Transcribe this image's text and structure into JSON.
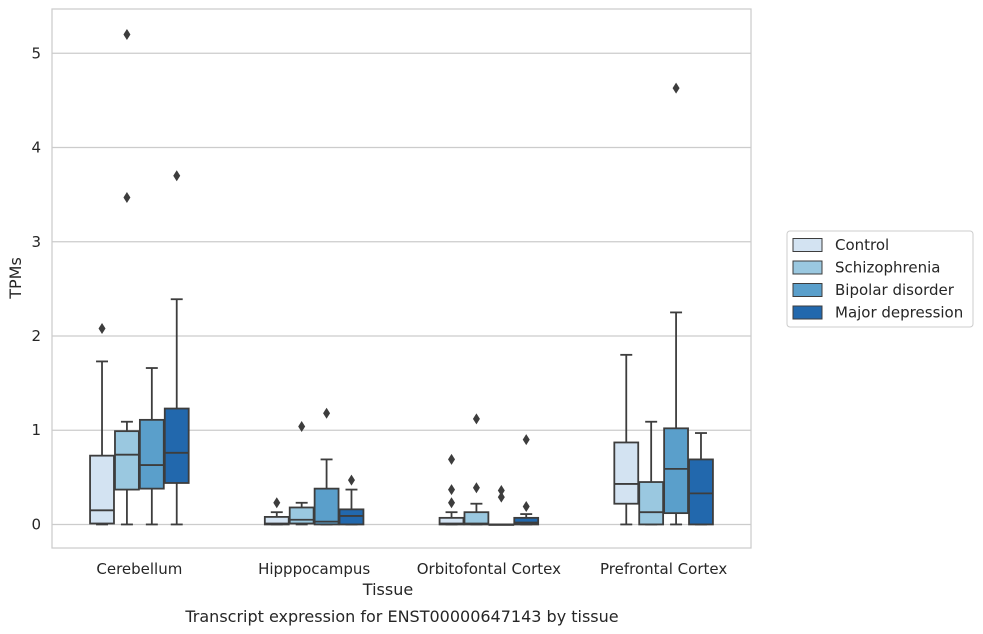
{
  "caption": "Transcript expression for ENST00000647143 by tissue",
  "chart_data": {
    "type": "box",
    "xlabel": "Tissue",
    "ylabel": "TPMs",
    "ylim": [
      -0.25,
      5.47
    ],
    "yticks": [
      0,
      1,
      2,
      3,
      4,
      5
    ],
    "grid": "horizontal",
    "legend_position": "right",
    "categories": [
      "Cerebellum",
      "Hipppocampus",
      "Orbitofontal Cortex",
      "Prefrontal Cortex"
    ],
    "series": [
      {
        "name": "Control",
        "color": "#d3e3f2",
        "boxes": [
          {
            "whislo": 0.0,
            "q1": 0.01,
            "med": 0.15,
            "q3": 0.73,
            "whishi": 1.73,
            "fliers": [
              2.08
            ]
          },
          {
            "whislo": 0.0,
            "q1": 0.0,
            "med": 0.01,
            "q3": 0.08,
            "whishi": 0.13,
            "fliers": [
              0.23
            ]
          },
          {
            "whislo": 0.0,
            "q1": 0.0,
            "med": 0.01,
            "q3": 0.07,
            "whishi": 0.13,
            "fliers": [
              0.23,
              0.37,
              0.69
            ]
          },
          {
            "whislo": 0.0,
            "q1": 0.22,
            "med": 0.43,
            "q3": 0.87,
            "whishi": 1.8,
            "fliers": []
          }
        ]
      },
      {
        "name": "Schizophrenia",
        "color": "#9ac8e0",
        "boxes": [
          {
            "whislo": 0.0,
            "q1": 0.37,
            "med": 0.74,
            "q3": 0.99,
            "whishi": 1.09,
            "fliers": [
              3.47,
              5.2
            ]
          },
          {
            "whislo": 0.0,
            "q1": 0.01,
            "med": 0.05,
            "q3": 0.18,
            "whishi": 0.23,
            "fliers": [
              1.04
            ]
          },
          {
            "whislo": 0.0,
            "q1": 0.0,
            "med": 0.01,
            "q3": 0.13,
            "whishi": 0.22,
            "fliers": [
              0.39,
              1.12
            ]
          },
          {
            "whislo": 0.0,
            "q1": 0.0,
            "med": 0.13,
            "q3": 0.45,
            "whishi": 1.09,
            "fliers": []
          }
        ]
      },
      {
        "name": "Bipolar disorder",
        "color": "#5a9fcb",
        "boxes": [
          {
            "whislo": 0.0,
            "q1": 0.38,
            "med": 0.63,
            "q3": 1.11,
            "whishi": 1.66,
            "fliers": []
          },
          {
            "whislo": 0.0,
            "q1": 0.0,
            "med": 0.03,
            "q3": 0.38,
            "whishi": 0.69,
            "fliers": [
              1.18
            ]
          },
          {
            "whislo": 0.0,
            "q1": 0.0,
            "med": 0.0,
            "q3": 0.0,
            "whishi": 0.0,
            "fliers": [
              0.29,
              0.36
            ]
          },
          {
            "whislo": 0.0,
            "q1": 0.12,
            "med": 0.59,
            "q3": 1.02,
            "whishi": 2.25,
            "fliers": [
              4.63
            ]
          }
        ]
      },
      {
        "name": "Major depression",
        "color": "#2268ad",
        "boxes": [
          {
            "whislo": 0.0,
            "q1": 0.44,
            "med": 0.76,
            "q3": 1.23,
            "whishi": 2.39,
            "fliers": [
              3.7
            ]
          },
          {
            "whislo": 0.0,
            "q1": 0.0,
            "med": 0.09,
            "q3": 0.16,
            "whishi": 0.37,
            "fliers": [
              0.47
            ]
          },
          {
            "whislo": 0.0,
            "q1": 0.0,
            "med": 0.02,
            "q3": 0.07,
            "whishi": 0.11,
            "fliers": [
              0.19,
              0.9
            ]
          },
          {
            "whislo": 0.0,
            "q1": 0.0,
            "med": 0.33,
            "q3": 0.69,
            "whishi": 0.97,
            "fliers": []
          }
        ]
      }
    ]
  }
}
